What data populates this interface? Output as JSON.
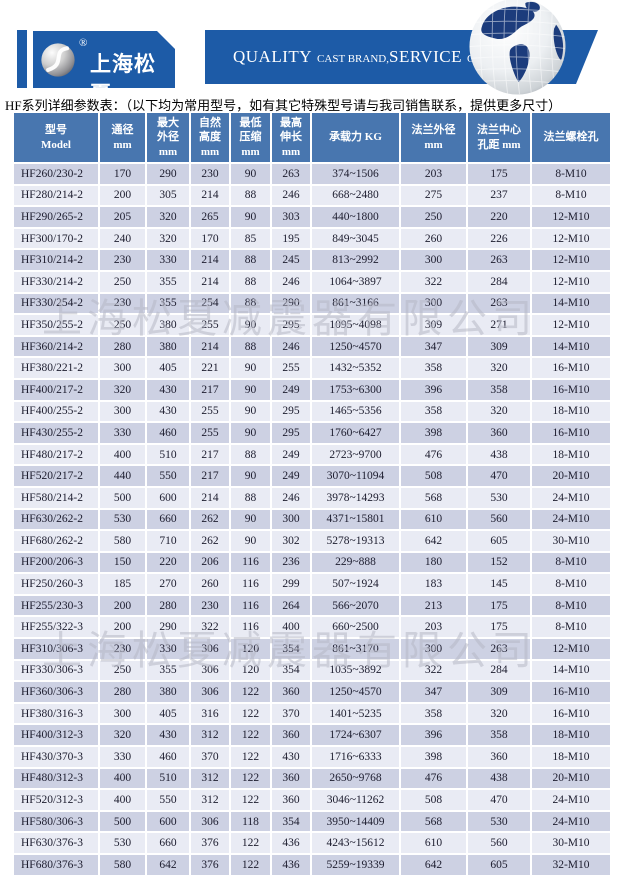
{
  "header": {
    "brand": "上海松夏",
    "reg_mark": "®",
    "slogan": {
      "word1": "QUALITY",
      "sub1": "CAST BRAND,",
      "word2": "SERVICE",
      "sub2": "CREAT VALUE"
    }
  },
  "caption": "HF系列详细参数表：（以下均为常用型号，如有其它特殊型号请与我司销售联系，提供更多尺寸）",
  "watermark": "上海松夏减震器有限公司",
  "colors": {
    "banner_blue": "#1d5ba7",
    "table_header_blue": "#4876af",
    "row_dark": "#cdd1e3",
    "row_light": "#e9ebf4",
    "watermark_gray": "#b7b9c6",
    "globe_continent_navy": "#1c3c7c"
  },
  "icons": {
    "logo_sphere": "songxia-sphere-logo",
    "globe": "puzzle-globe",
    "registered": "registered-trademark"
  },
  "table": {
    "columns": [
      "型号\nModel",
      "通径\nmm",
      "最大\n外径\nmm",
      "自然\n高度\nmm",
      "最低\n压缩\nmm",
      "最高\n伸长\nmm",
      "承载力 KG",
      "法兰外径\nmm",
      "法兰中心\n孔距 mm",
      "法兰螺栓孔"
    ],
    "rows": [
      [
        "HF260/230-2",
        "170",
        "290",
        "230",
        "90",
        "263",
        "374~1506",
        "203",
        "175",
        "8-M10"
      ],
      [
        "HF280/214-2",
        "200",
        "305",
        "214",
        "88",
        "246",
        "668~2480",
        "275",
        "237",
        "8-M10"
      ],
      [
        "HF290/265-2",
        "205",
        "320",
        "265",
        "90",
        "303",
        "440~1800",
        "250",
        "220",
        "12-M10"
      ],
      [
        "HF300/170-2",
        "240",
        "320",
        "170",
        "85",
        "195",
        "849~3045",
        "260",
        "226",
        "12-M10"
      ],
      [
        "HF310/214-2",
        "230",
        "330",
        "214",
        "88",
        "245",
        "813~2992",
        "300",
        "263",
        "12-M10"
      ],
      [
        "HF330/214-2",
        "250",
        "355",
        "214",
        "88",
        "246",
        "1064~3897",
        "322",
        "284",
        "12-M10"
      ],
      [
        "HF330/254-2",
        "230",
        "355",
        "254",
        "88",
        "290",
        "861~3166",
        "300",
        "263",
        "14-M10"
      ],
      [
        "HF350/255-2",
        "250",
        "380",
        "255",
        "90",
        "295",
        "1095~4098",
        "309",
        "271",
        "12-M10"
      ],
      [
        "HF360/214-2",
        "280",
        "380",
        "214",
        "88",
        "246",
        "1250~4570",
        "347",
        "309",
        "14-M10"
      ],
      [
        "HF380/221-2",
        "300",
        "405",
        "221",
        "90",
        "255",
        "1432~5352",
        "358",
        "320",
        "16-M10"
      ],
      [
        "HF400/217-2",
        "320",
        "430",
        "217",
        "90",
        "249",
        "1753~6300",
        "396",
        "358",
        "16-M10"
      ],
      [
        "HF400/255-2",
        "300",
        "430",
        "255",
        "90",
        "295",
        "1465~5356",
        "358",
        "320",
        "18-M10"
      ],
      [
        "HF430/255-2",
        "330",
        "460",
        "255",
        "90",
        "295",
        "1760~6427",
        "398",
        "360",
        "16-M10"
      ],
      [
        "HF480/217-2",
        "400",
        "510",
        "217",
        "88",
        "249",
        "2723~9700",
        "476",
        "438",
        "18-M10"
      ],
      [
        "HF520/217-2",
        "440",
        "550",
        "217",
        "90",
        "249",
        "3070~11094",
        "508",
        "470",
        "20-M10"
      ],
      [
        "HF580/214-2",
        "500",
        "600",
        "214",
        "88",
        "246",
        "3978~14293",
        "568",
        "530",
        "24-M10"
      ],
      [
        "HF630/262-2",
        "530",
        "660",
        "262",
        "90",
        "300",
        "4371~15801",
        "610",
        "560",
        "24-M10"
      ],
      [
        "HF680/262-2",
        "580",
        "710",
        "262",
        "90",
        "302",
        "5278~19313",
        "642",
        "605",
        "30-M10"
      ],
      [
        "HF200/206-3",
        "150",
        "220",
        "206",
        "116",
        "236",
        "229~888",
        "180",
        "152",
        "8-M10"
      ],
      [
        "HF250/260-3",
        "185",
        "270",
        "260",
        "116",
        "299",
        "507~1924",
        "183",
        "145",
        "8-M10"
      ],
      [
        "HF255/230-3",
        "200",
        "280",
        "230",
        "116",
        "264",
        "566~2070",
        "213",
        "175",
        "8-M10"
      ],
      [
        "HF255/322-3",
        "200",
        "290",
        "322",
        "116",
        "400",
        "660~2500",
        "203",
        "175",
        "8-M10"
      ],
      [
        "HF310/306-3",
        "230",
        "330",
        "306",
        "120",
        "354",
        "861~3170",
        "300",
        "263",
        "12-M10"
      ],
      [
        "HF330/306-3",
        "250",
        "355",
        "306",
        "120",
        "354",
        "1035~3892",
        "322",
        "284",
        "14-M10"
      ],
      [
        "HF360/306-3",
        "280",
        "380",
        "306",
        "122",
        "360",
        "1250~4570",
        "347",
        "309",
        "16-M10"
      ],
      [
        "HF380/316-3",
        "300",
        "405",
        "316",
        "122",
        "370",
        "1401~5235",
        "358",
        "320",
        "16-M10"
      ],
      [
        "HF400/312-3",
        "320",
        "430",
        "312",
        "122",
        "360",
        "1724~6307",
        "396",
        "358",
        "18-M10"
      ],
      [
        "HF430/370-3",
        "330",
        "460",
        "370",
        "122",
        "430",
        "1716~6333",
        "398",
        "360",
        "18-M10"
      ],
      [
        "HF480/312-3",
        "400",
        "510",
        "312",
        "122",
        "360",
        "2650~9768",
        "476",
        "438",
        "20-M10"
      ],
      [
        "HF520/312-3",
        "400",
        "550",
        "312",
        "122",
        "360",
        "3046~11262",
        "508",
        "470",
        "24-M10"
      ],
      [
        "HF580/306-3",
        "500",
        "600",
        "306",
        "118",
        "354",
        "3950~14409",
        "568",
        "530",
        "24-M10"
      ],
      [
        "HF630/376-3",
        "530",
        "660",
        "376",
        "122",
        "436",
        "4243~15612",
        "610",
        "560",
        "30-M10"
      ],
      [
        "HF680/376-3",
        "580",
        "642",
        "376",
        "122",
        "436",
        "5259~19339",
        "642",
        "605",
        "32-M10"
      ]
    ]
  }
}
